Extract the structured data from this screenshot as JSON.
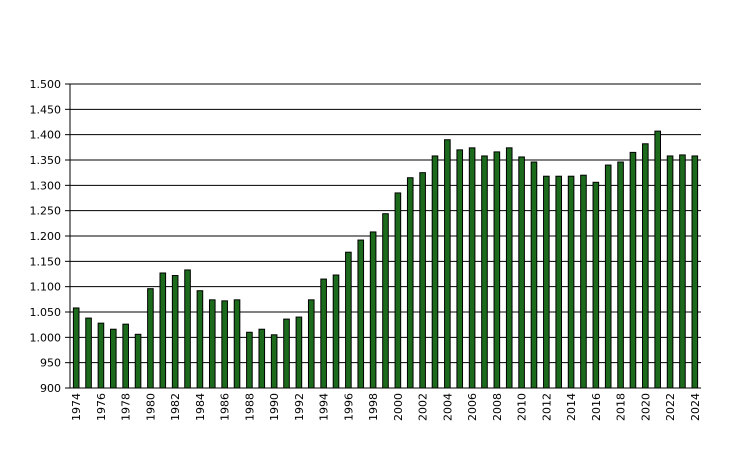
{
  "chart_data": {
    "type": "bar",
    "title": "",
    "xlabel": "",
    "ylabel": "",
    "ylim": [
      900,
      1500
    ],
    "y_ticks": [
      "900",
      "950",
      "1.000",
      "1.050",
      "1.100",
      "1.150",
      "1.200",
      "1.250",
      "1.300",
      "1.350",
      "1.400",
      "1.450",
      "1.500"
    ],
    "y_tick_values": [
      900,
      950,
      1000,
      1050,
      1100,
      1150,
      1200,
      1250,
      1300,
      1350,
      1400,
      1450,
      1500
    ],
    "grid": true,
    "legend": "none",
    "bar_color": "#1c6b1c",
    "categories": [
      "1974",
      "1975",
      "1976",
      "1977",
      "1978",
      "1979",
      "1980",
      "1981",
      "1982",
      "1983",
      "1984",
      "1985",
      "1986",
      "1987",
      "1988",
      "1989",
      "1990",
      "1991",
      "1992",
      "1993",
      "1994",
      "1995",
      "1996",
      "1997",
      "1998",
      "1999",
      "2000",
      "2001",
      "2002",
      "2003",
      "2004",
      "2005",
      "2006",
      "2007",
      "2008",
      "2009",
      "2010",
      "2011",
      "2012",
      "2013",
      "2014",
      "2015",
      "2016",
      "2017",
      "2018",
      "2019",
      "2020",
      "2021",
      "2022",
      "2023",
      "2024"
    ],
    "x_tick_labels": [
      "1974",
      "",
      "1976",
      "",
      "1978",
      "",
      "1980",
      "",
      "1982",
      "",
      "1984",
      "",
      "1986",
      "",
      "1988",
      "",
      "1990",
      "",
      "1992",
      "",
      "1994",
      "",
      "1996",
      "",
      "1998",
      "",
      "2000",
      "",
      "2002",
      "",
      "2004",
      "",
      "2006",
      "",
      "2008",
      "",
      "2010",
      "",
      "2012",
      "",
      "2014",
      "",
      "2016",
      "",
      "2018",
      "",
      "2020",
      "",
      "2022",
      "",
      "2024"
    ],
    "values": [
      1058,
      1038,
      1028,
      1016,
      1026,
      1006,
      1096,
      1127,
      1122,
      1133,
      1092,
      1074,
      1072,
      1074,
      1010,
      1016,
      1005,
      1036,
      1040,
      1074,
      1115,
      1123,
      1168,
      1192,
      1208,
      1244,
      1285,
      1315,
      1325,
      1358,
      1390,
      1370,
      1374,
      1358,
      1366,
      1374,
      1356,
      1346,
      1318,
      1318,
      1318,
      1320,
      1306,
      1340,
      1346,
      1365,
      1382,
      1407,
      1358,
      1360,
      1358
    ]
  }
}
